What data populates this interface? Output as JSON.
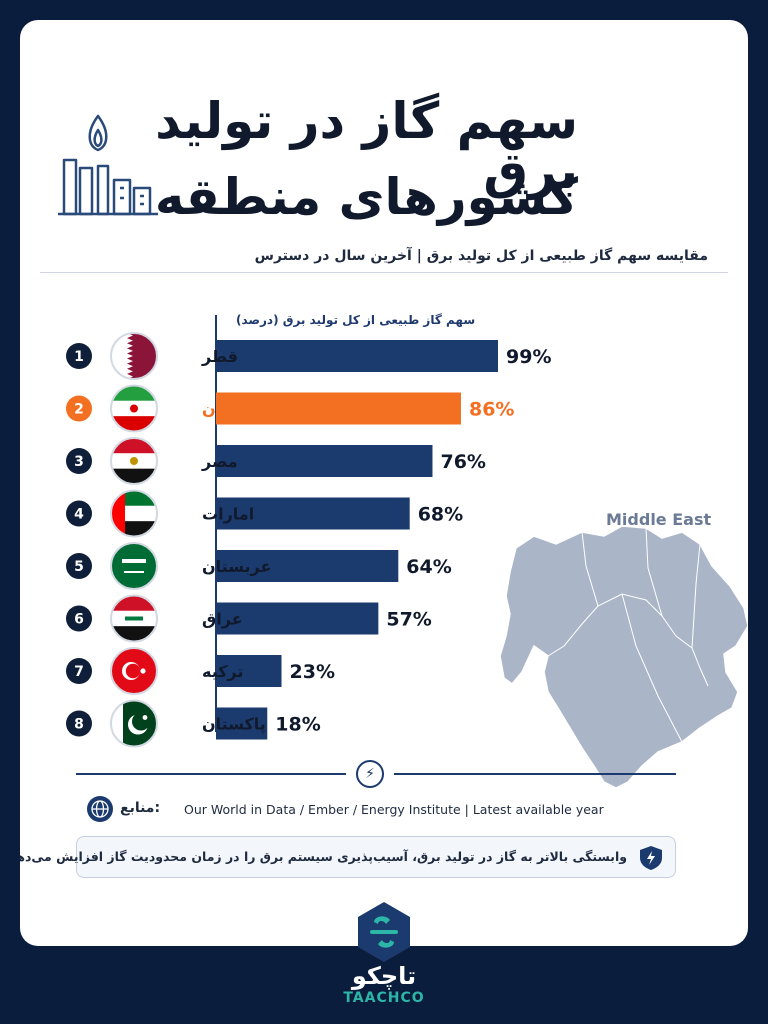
{
  "header": {
    "title_line1": "سهم گاز در تولید برق",
    "title_line2": "کشورهای منطقه",
    "subtitle": "مقایسه سهم گاز طبیعی از کل تولید برق | آخرین سال در دسترس"
  },
  "chart_data": {
    "type": "bar",
    "orientation": "horizontal",
    "axis_caption": "سهم گاز طبیعی از کل تولید برق (درصد)",
    "categories": [
      "قطر",
      "ایران",
      "مصر",
      "امارات",
      "عربستان",
      "عراق",
      "ترکیه",
      "پاکستان"
    ],
    "ranks": [
      "1",
      "2",
      "3",
      "4",
      "5",
      "6",
      "7",
      "8"
    ],
    "values": [
      99,
      86,
      76,
      68,
      64,
      57,
      23,
      18
    ],
    "value_labels": [
      "99%",
      "86%",
      "76%",
      "68%",
      "64%",
      "57%",
      "23%",
      "18%"
    ],
    "flags": [
      "qatar-flag",
      "iran-flag",
      "egypt-flag",
      "uae-flag",
      "saudi-flag",
      "iraq-flag",
      "turkey-flag",
      "pakistan-flag"
    ],
    "highlight_index": 1,
    "colors": {
      "default": "#1b3a6e",
      "highlight": "#f36f21"
    },
    "xlim": [
      0,
      100
    ]
  },
  "map": {
    "label": "Middle East",
    "color": "#aab6c8"
  },
  "sources": {
    "label": "منابع:",
    "text": "Our World in Data / Ember / Energy Institute | Latest available year"
  },
  "note": {
    "text": "وابستگی بالاتر به گاز در تولید برق، آسیب‌پذیری سیستم برق را در زمان محدودیت گاز افزایش می‌دهد."
  },
  "branding": {
    "name_fa": "تاچکو",
    "name_en": "TAACHCO"
  },
  "icons": {
    "plant": "power-plant-icon",
    "bolt": "lightning-bolt-icon",
    "globe": "globe-icon",
    "shield": "shield-bolt-icon",
    "logo": "taachco-logo-icon"
  }
}
